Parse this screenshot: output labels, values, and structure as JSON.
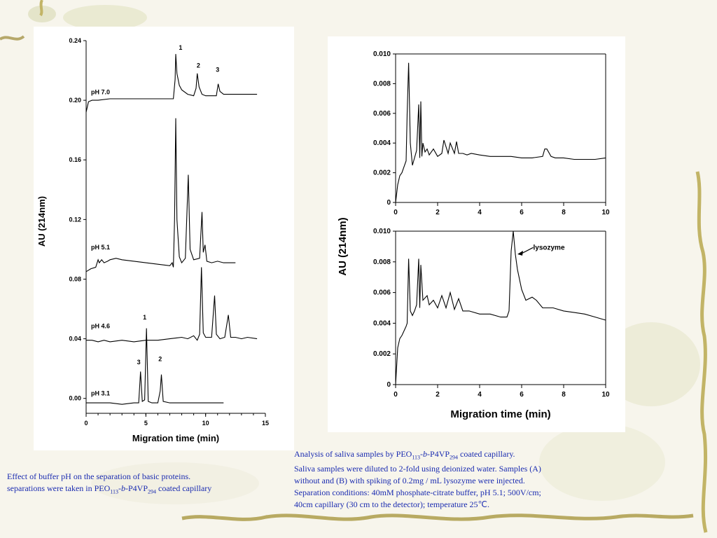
{
  "left_caption": {
    "line1": " Effect of buffer pH on the separation of basic proteins.",
    "line2_pre": "separations were taken in PEO",
    "sub1": "113",
    "dash1": "-",
    "b": "b",
    "mid": "-P4VP",
    "sub2": "294",
    "post": " coated capillary"
  },
  "right_caption": {
    "l1_pre": "Analysis of saliva samples by PEO",
    "sub1": "113",
    "dash1": "-",
    "b": "b",
    "mid": "-P4VP",
    "sub2": "294",
    "l1_post": " coated capillary.",
    "l2": "Saliva samples were diluted to 2-fold using deionized water. Samples (A)",
    "l3": "without and (B) with spiking of 0.2mg / mL lysozyme were injected.",
    "l4": "Separation conditions: 40mM phosphate-citrate buffer, pH 5.1; 500V/cm;",
    "l5": "40cm capillary (30 cm to the detector); temperature 25℃."
  },
  "chart_data": [
    {
      "type": "line",
      "xlabel": "Migration time (min)",
      "ylabel": "AU (214nm)",
      "xlim": [
        0,
        15
      ],
      "ylim": [
        -0.01,
        0.24
      ],
      "xticks": [
        "0",
        "5",
        "10",
        "15"
      ],
      "yticks": [
        "0.00",
        "0.04",
        "0.08",
        "0.12",
        "0.16",
        "0.20",
        "0.24"
      ],
      "series": [
        {
          "name": "pH 7.0",
          "x": [
            0,
            0.2,
            0.5,
            1,
            2,
            3,
            4,
            5,
            6,
            7.3,
            7.45,
            7.5,
            7.6,
            7.8,
            8,
            8.5,
            9,
            9.2,
            9.3,
            9.45,
            9.7,
            10,
            10.5,
            10.9,
            11.05,
            11.2,
            11.5,
            12,
            13,
            14.3
          ],
          "y": [
            0.192,
            0.199,
            0.2,
            0.2,
            0.201,
            0.201,
            0.201,
            0.201,
            0.201,
            0.201,
            0.214,
            0.231,
            0.218,
            0.21,
            0.207,
            0.204,
            0.203,
            0.208,
            0.218,
            0.209,
            0.204,
            0.203,
            0.203,
            0.203,
            0.211,
            0.206,
            0.204,
            0.204,
            0.204,
            0.204
          ]
        },
        {
          "name": "pH 5.1",
          "x": [
            0,
            0.4,
            0.8,
            1,
            1.1,
            1.3,
            1.5,
            1.8,
            2,
            2.5,
            3,
            4,
            5,
            6,
            7,
            7.2,
            7.3,
            7.4,
            7.5,
            7.6,
            7.8,
            8,
            8.3,
            8.55,
            8.7,
            9,
            9.5,
            9.7,
            9.8,
            9.95,
            10.1,
            10.5,
            11,
            11.5,
            12.5
          ],
          "y": [
            0.085,
            0.087,
            0.088,
            0.093,
            0.091,
            0.093,
            0.091,
            0.092,
            0.093,
            0.094,
            0.093,
            0.092,
            0.091,
            0.09,
            0.089,
            0.091,
            0.088,
            0.12,
            0.188,
            0.12,
            0.095,
            0.091,
            0.094,
            0.15,
            0.1,
            0.093,
            0.094,
            0.125,
            0.098,
            0.103,
            0.092,
            0.091,
            0.092,
            0.091,
            0.091
          ]
        },
        {
          "name": "pH 4.6",
          "x": [
            0,
            0.5,
            1,
            1.5,
            2,
            3,
            4,
            5,
            6,
            7,
            8,
            8.5,
            9,
            9.3,
            9.5,
            9.65,
            9.8,
            10,
            10.5,
            10.75,
            10.9,
            11.2,
            11.6,
            11.9,
            12.1,
            12.5,
            13,
            13.5,
            14.3
          ],
          "y": [
            0.039,
            0.039,
            0.038,
            0.039,
            0.038,
            0.039,
            0.038,
            0.039,
            0.039,
            0.04,
            0.041,
            0.04,
            0.042,
            0.039,
            0.043,
            0.088,
            0.044,
            0.041,
            0.041,
            0.069,
            0.043,
            0.04,
            0.041,
            0.056,
            0.041,
            0.041,
            0.04,
            0.041,
            0.04
          ]
        },
        {
          "name": "pH 3.1",
          "x": [
            0,
            1,
            2,
            3,
            4,
            4.4,
            4.55,
            4.7,
            4.9,
            5.05,
            5.2,
            5.5,
            6,
            6.2,
            6.3,
            6.45,
            7,
            8,
            9,
            10,
            11.5
          ],
          "y": [
            -0.003,
            -0.003,
            -0.003,
            -0.004,
            -0.003,
            -0.003,
            0.018,
            -0.002,
            -0.001,
            0.047,
            -0.002,
            -0.003,
            -0.003,
            0.005,
            0.016,
            -0.002,
            -0.003,
            -0.003,
            -0.003,
            -0.003,
            -0.003
          ]
        }
      ],
      "annotations": [
        {
          "text": "1",
          "x": 7.9,
          "y": 0.234
        },
        {
          "text": "2",
          "x": 9.4,
          "y": 0.222
        },
        {
          "text": "3",
          "x": 11.0,
          "y": 0.219
        },
        {
          "text": "pH 7.0",
          "x": 1.2,
          "y": 0.204
        },
        {
          "text": "pH 5.1",
          "x": 1.2,
          "y": 0.1
        },
        {
          "text": "pH 4.6",
          "x": 1.2,
          "y": 0.047
        },
        {
          "text": "pH 3.1",
          "x": 1.2,
          "y": 0.002
        },
        {
          "text": "1",
          "x": 4.9,
          "y": 0.053
        },
        {
          "text": "2",
          "x": 6.2,
          "y": 0.025
        },
        {
          "text": "3",
          "x": 4.4,
          "y": 0.023
        }
      ]
    },
    {
      "type": "line",
      "panel": "A",
      "xlabel": "",
      "ylabel": "AU (214nm)",
      "xlim": [
        0,
        10
      ],
      "ylim": [
        0,
        0.01
      ],
      "xticks": [
        "0",
        "2",
        "4",
        "6",
        "8",
        "10"
      ],
      "yticks": [
        "0",
        "0.002",
        "0.004",
        "0.006",
        "0.008",
        "0.010"
      ],
      "series": [
        {
          "name": "",
          "x": [
            0,
            0.1,
            0.2,
            0.3,
            0.4,
            0.5,
            0.55,
            0.62,
            0.7,
            0.8,
            0.9,
            1.0,
            1.1,
            1.15,
            1.2,
            1.25,
            1.3,
            1.4,
            1.5,
            1.6,
            1.8,
            2.0,
            2.2,
            2.3,
            2.5,
            2.6,
            2.8,
            2.9,
            3.0,
            3.2,
            3.4,
            3.6,
            4.0,
            4.5,
            5.0,
            5.5,
            6.0,
            6.5,
            7.0,
            7.1,
            7.2,
            7.4,
            7.6,
            8.0,
            8.5,
            9.0,
            9.5,
            10.0
          ],
          "y": [
            0,
            0.0012,
            0.0018,
            0.002,
            0.0024,
            0.0028,
            0.006,
            0.0094,
            0.004,
            0.0025,
            0.003,
            0.0035,
            0.0066,
            0.003,
            0.0068,
            0.0031,
            0.004,
            0.0034,
            0.0036,
            0.0032,
            0.0036,
            0.0031,
            0.0033,
            0.0042,
            0.0033,
            0.004,
            0.0033,
            0.0041,
            0.0033,
            0.0033,
            0.0032,
            0.0033,
            0.0032,
            0.0031,
            0.0031,
            0.0031,
            0.003,
            0.003,
            0.0031,
            0.0036,
            0.0036,
            0.0031,
            0.003,
            0.003,
            0.0029,
            0.0029,
            0.0029,
            0.003
          ]
        }
      ]
    },
    {
      "type": "line",
      "panel": "B",
      "xlabel": "Migration time (min)",
      "ylabel": "",
      "xlim": [
        0,
        10
      ],
      "ylim": [
        0,
        0.01
      ],
      "xticks": [
        "0",
        "2",
        "4",
        "6",
        "8",
        "10"
      ],
      "yticks": [
        "0",
        "0.002",
        "0.004",
        "0.006",
        "0.008",
        "0.010"
      ],
      "series": [
        {
          "name": "",
          "x": [
            0,
            0.1,
            0.2,
            0.3,
            0.4,
            0.5,
            0.55,
            0.62,
            0.7,
            0.8,
            0.9,
            1.0,
            1.1,
            1.15,
            1.2,
            1.3,
            1.5,
            1.6,
            1.8,
            2.0,
            2.2,
            2.4,
            2.6,
            2.8,
            3.0,
            3.2,
            3.5,
            4.0,
            4.5,
            5.0,
            5.3,
            5.4,
            5.5,
            5.6,
            5.7,
            5.8,
            6.0,
            6.2,
            6.5,
            6.7,
            7.0,
            7.5,
            8.0,
            8.5,
            9.0,
            9.5,
            10.0
          ],
          "y": [
            0,
            0.0024,
            0.003,
            0.0032,
            0.0035,
            0.0038,
            0.004,
            0.0082,
            0.0048,
            0.0045,
            0.0048,
            0.0052,
            0.0082,
            0.005,
            0.0078,
            0.0055,
            0.0058,
            0.0052,
            0.0055,
            0.005,
            0.0058,
            0.005,
            0.006,
            0.0049,
            0.0056,
            0.0048,
            0.0048,
            0.0046,
            0.0046,
            0.0044,
            0.0044,
            0.0048,
            0.0087,
            0.01,
            0.0085,
            0.0075,
            0.0062,
            0.0055,
            0.0057,
            0.0055,
            0.005,
            0.005,
            0.0048,
            0.0047,
            0.0046,
            0.0044,
            0.0042
          ]
        }
      ],
      "annotations": [
        {
          "text": "lysozyme",
          "x": 7.3,
          "y": 0.0088
        }
      ]
    }
  ],
  "colors": {
    "caption": "#1a2bb0",
    "line": "#000000",
    "background": "#f7f5ec"
  }
}
